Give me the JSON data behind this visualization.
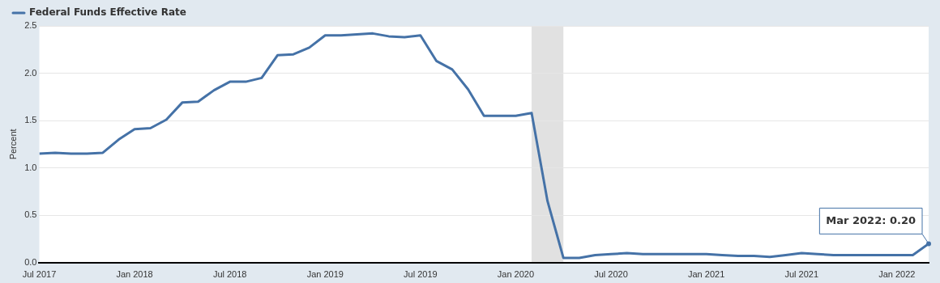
{
  "chart_data": {
    "type": "line",
    "ylabel": "Percent",
    "x": [
      "2017-07",
      "2017-08",
      "2017-09",
      "2017-10",
      "2017-11",
      "2017-12",
      "2018-01",
      "2018-02",
      "2018-03",
      "2018-04",
      "2018-05",
      "2018-06",
      "2018-07",
      "2018-08",
      "2018-09",
      "2018-10",
      "2018-11",
      "2018-12",
      "2019-01",
      "2019-02",
      "2019-03",
      "2019-04",
      "2019-05",
      "2019-06",
      "2019-07",
      "2019-08",
      "2019-09",
      "2019-10",
      "2019-11",
      "2019-12",
      "2020-01",
      "2020-02",
      "2020-03",
      "2020-04",
      "2020-05",
      "2020-06",
      "2020-07",
      "2020-08",
      "2020-09",
      "2020-10",
      "2020-11",
      "2020-12",
      "2021-01",
      "2021-02",
      "2021-03",
      "2021-04",
      "2021-05",
      "2021-06",
      "2021-07",
      "2021-08",
      "2021-09",
      "2021-10",
      "2021-11",
      "2021-12",
      "2022-01",
      "2022-02",
      "2022-03"
    ],
    "series": [
      {
        "name": "Federal Funds Effective Rate",
        "color": "#4572a7",
        "values": [
          1.15,
          1.16,
          1.15,
          1.15,
          1.16,
          1.3,
          1.41,
          1.42,
          1.51,
          1.69,
          1.7,
          1.82,
          1.91,
          1.91,
          1.95,
          2.19,
          2.2,
          2.27,
          2.4,
          2.4,
          2.41,
          2.42,
          2.39,
          2.38,
          2.4,
          2.13,
          2.04,
          1.83,
          1.55,
          1.55,
          1.55,
          1.58,
          0.65,
          0.05,
          0.05,
          0.08,
          0.09,
          0.1,
          0.09,
          0.09,
          0.09,
          0.09,
          0.09,
          0.08,
          0.07,
          0.07,
          0.06,
          0.08,
          0.1,
          0.09,
          0.08,
          0.08,
          0.08,
          0.08,
          0.08,
          0.08,
          0.2
        ]
      }
    ],
    "xlim": [
      "2017-07",
      "2022-03"
    ],
    "xticks": [
      {
        "value": "2017-07",
        "label": "Jul 2017"
      },
      {
        "value": "2018-01",
        "label": "Jan 2018"
      },
      {
        "value": "2018-07",
        "label": "Jul 2018"
      },
      {
        "value": "2019-01",
        "label": "Jan 2019"
      },
      {
        "value": "2019-07",
        "label": "Jul 2019"
      },
      {
        "value": "2020-01",
        "label": "Jan 2020"
      },
      {
        "value": "2020-07",
        "label": "Jul 2020"
      },
      {
        "value": "2021-01",
        "label": "Jan 2021"
      },
      {
        "value": "2021-07",
        "label": "Jul 2021"
      },
      {
        "value": "2022-01",
        "label": "Jan 2022"
      }
    ],
    "ylim": [
      0,
      2.5
    ],
    "yticks": [
      {
        "value": 0,
        "label": "0.0"
      },
      {
        "value": 0.5,
        "label": "0.5"
      },
      {
        "value": 1,
        "label": "1.0"
      },
      {
        "value": 1.5,
        "label": "1.5"
      },
      {
        "value": 2,
        "label": "2.0"
      },
      {
        "value": 2.5,
        "label": "2.5"
      }
    ],
    "bands": [
      {
        "axis": "x",
        "from": "2020-02",
        "to": "2020-04",
        "color": "#e1e1e1"
      }
    ],
    "annotations": [
      {
        "text": "Mar 2022: 0.20",
        "x": "2022-03",
        "y": 0.2
      }
    ],
    "grid": "y",
    "legend": "top left",
    "line_style": "solid"
  }
}
